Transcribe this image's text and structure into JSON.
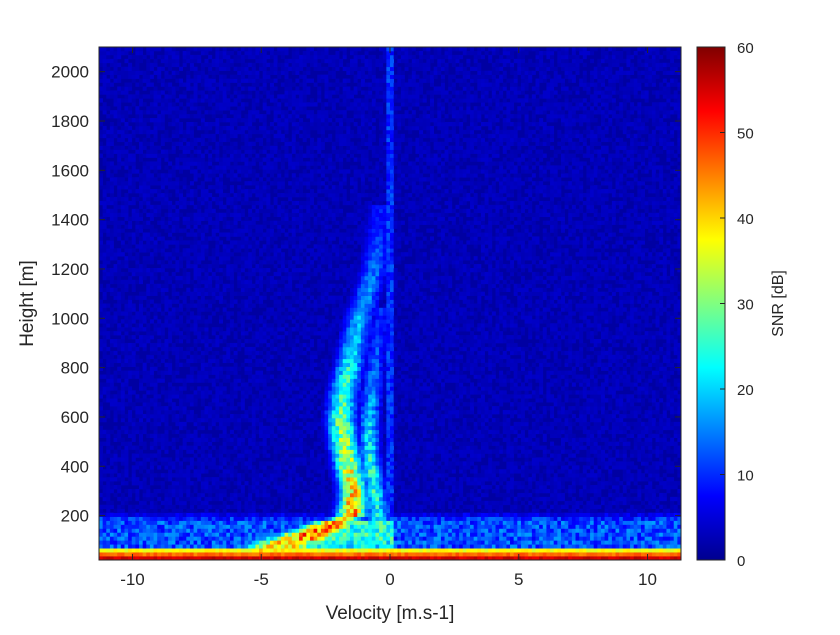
{
  "chart_data": {
    "type": "heatmap",
    "title": "",
    "xlabel": "Velocity [m.s-1]",
    "ylabel": "Height [m]",
    "xlim": [
      -11.3,
      11.3
    ],
    "ylim": [
      20,
      2100
    ],
    "xticks": [
      -10,
      -5,
      0,
      5,
      10
    ],
    "yticks": [
      200,
      400,
      600,
      800,
      1000,
      1200,
      1400,
      1600,
      1800,
      2000
    ],
    "colormap": "jet",
    "colorbar": {
      "label": "SNR [dB]",
      "range": [
        0,
        60
      ],
      "ticks": [
        0,
        10,
        20,
        30,
        40,
        50,
        60
      ]
    },
    "background_snr_db": 2,
    "features": [
      {
        "name": "ground clutter band",
        "height_range_m": [
          20,
          65
        ],
        "snr_db": 58
      },
      {
        "name": "near-surface layer",
        "height_range_m": [
          65,
          220
        ],
        "snr_db": 12
      },
      {
        "name": "zero-velocity line",
        "velocity_ms": 0,
        "height_range_m": [
          20,
          2100
        ],
        "snr_db": 11
      },
      {
        "name": "main echo plume",
        "points": [
          {
            "height_m": 60,
            "velocity_ms": -4.6,
            "snr_db": 38
          },
          {
            "height_m": 120,
            "velocity_ms": -3.2,
            "snr_db": 48
          },
          {
            "height_m": 200,
            "velocity_ms": -1.5,
            "snr_db": 46
          },
          {
            "height_m": 300,
            "velocity_ms": -1.4,
            "snr_db": 40
          },
          {
            "height_m": 400,
            "velocity_ms": -1.6,
            "snr_db": 36
          },
          {
            "height_m": 500,
            "velocity_ms": -1.8,
            "snr_db": 33
          },
          {
            "height_m": 600,
            "velocity_ms": -1.9,
            "snr_db": 30
          },
          {
            "height_m": 700,
            "velocity_ms": -1.8,
            "snr_db": 26
          },
          {
            "height_m": 800,
            "velocity_ms": -1.6,
            "snr_db": 24
          },
          {
            "height_m": 900,
            "velocity_ms": -1.4,
            "snr_db": 20
          },
          {
            "height_m": 1000,
            "velocity_ms": -1.2,
            "snr_db": 18
          },
          {
            "height_m": 1100,
            "velocity_ms": -0.9,
            "snr_db": 16
          },
          {
            "height_m": 1200,
            "velocity_ms": -0.6,
            "snr_db": 14
          },
          {
            "height_m": 1300,
            "velocity_ms": -0.5,
            "snr_db": 12
          },
          {
            "height_m": 1400,
            "velocity_ms": -0.4,
            "snr_db": 9
          }
        ]
      },
      {
        "name": "secondary branch",
        "points": [
          {
            "height_m": 150,
            "velocity_ms": -0.4,
            "snr_db": 22
          },
          {
            "height_m": 300,
            "velocity_ms": -0.6,
            "snr_db": 26
          },
          {
            "height_m": 450,
            "velocity_ms": -0.8,
            "snr_db": 24
          },
          {
            "height_m": 600,
            "velocity_ms": -0.8,
            "snr_db": 20
          },
          {
            "height_m": 800,
            "velocity_ms": -0.6,
            "snr_db": 14
          },
          {
            "height_m": 1000,
            "velocity_ms": -0.4,
            "snr_db": 10
          }
        ]
      }
    ]
  }
}
